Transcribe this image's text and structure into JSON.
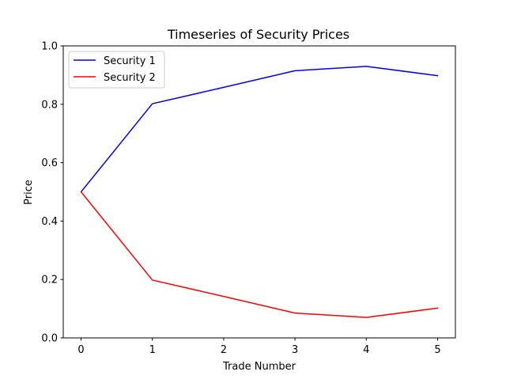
{
  "chart_data": {
    "type": "line",
    "title": "Timeseries of Security Prices",
    "xlabel": "Trade Number",
    "ylabel": "Price",
    "x": [
      0,
      1,
      2,
      3,
      4,
      5
    ],
    "xlim": [
      -0.25,
      5.25
    ],
    "ylim": [
      0.0,
      1.0
    ],
    "xticks": [
      0,
      1,
      2,
      3,
      4,
      5
    ],
    "yticks": [
      0.0,
      0.2,
      0.4,
      0.6,
      0.8,
      1.0
    ],
    "xtick_labels": [
      "0",
      "1",
      "2",
      "3",
      "4",
      "5"
    ],
    "ytick_labels": [
      "0.0",
      "0.2",
      "0.4",
      "0.6",
      "0.8",
      "1.0"
    ],
    "grid": false,
    "legend_position": "top-left",
    "series": [
      {
        "name": "Security 1",
        "color": "#0000ff",
        "values": [
          0.5,
          0.802,
          0.858,
          0.915,
          0.93,
          0.898
        ]
      },
      {
        "name": "Security 2",
        "color": "#ff0000",
        "values": [
          0.5,
          0.198,
          0.142,
          0.085,
          0.07,
          0.102
        ]
      }
    ]
  }
}
